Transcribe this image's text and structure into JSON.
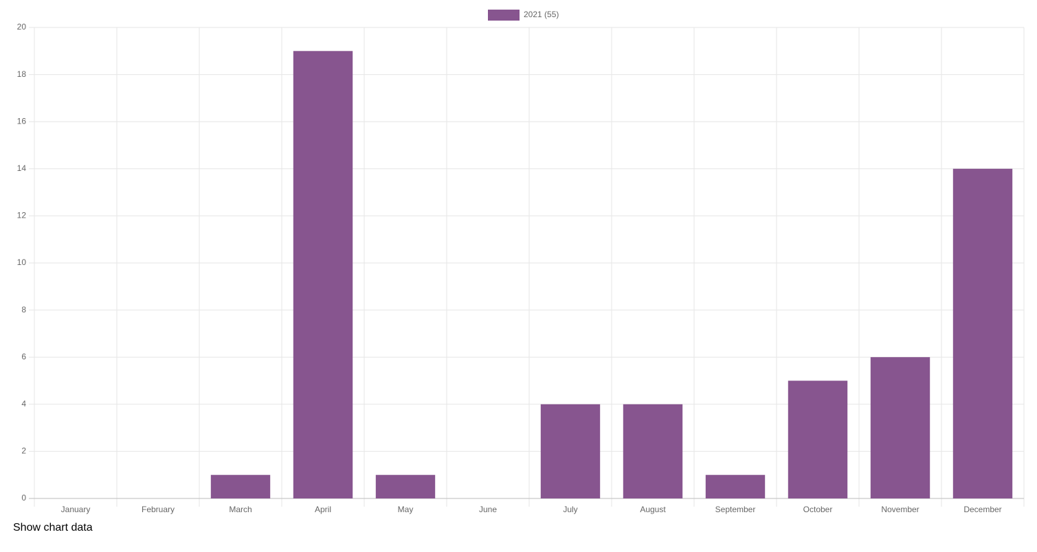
{
  "chart_data": {
    "type": "bar",
    "categories": [
      "January",
      "February",
      "March",
      "April",
      "May",
      "June",
      "July",
      "August",
      "September",
      "October",
      "November",
      "December"
    ],
    "series": [
      {
        "name": "2021 (55)",
        "color": "#87558f",
        "values": [
          0,
          0,
          1,
          19,
          1,
          0,
          4,
          4,
          1,
          5,
          6,
          14
        ]
      }
    ],
    "ylim": [
      0,
      20
    ],
    "yticks": [
      0,
      2,
      4,
      6,
      8,
      10,
      12,
      14,
      16,
      18,
      20
    ],
    "grid": true,
    "legend": "top"
  },
  "show_data_link": "Show chart data"
}
